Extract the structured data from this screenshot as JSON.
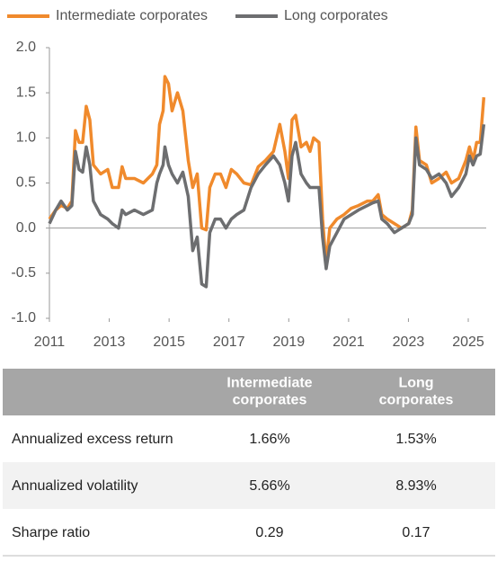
{
  "chart_data": {
    "type": "line",
    "x": [
      2011.0,
      2011.21,
      2011.39,
      2011.6,
      2011.75,
      2011.87,
      2011.99,
      2012.11,
      2012.23,
      2012.35,
      2012.47,
      2012.71,
      2012.95,
      2013.1,
      2013.31,
      2013.43,
      2013.55,
      2013.84,
      2014.14,
      2014.44,
      2014.59,
      2014.68,
      2014.8,
      2014.86,
      2014.98,
      2015.1,
      2015.28,
      2015.46,
      2015.64,
      2015.79,
      2015.94,
      2016.09,
      2016.24,
      2016.36,
      2016.54,
      2016.72,
      2016.9,
      2017.08,
      2017.26,
      2017.5,
      2017.74,
      2017.98,
      2018.22,
      2018.49,
      2018.7,
      2018.87,
      2018.99,
      2019.11,
      2019.23,
      2019.41,
      2019.59,
      2019.71,
      2019.83,
      2020.01,
      2020.13,
      2020.25,
      2020.37,
      2020.61,
      2020.85,
      2021.09,
      2021.33,
      2021.63,
      2021.81,
      2021.99,
      2022.11,
      2022.29,
      2022.53,
      2022.77,
      2023.01,
      2023.13,
      2023.25,
      2023.37,
      2023.6,
      2023.78,
      2024.02,
      2024.26,
      2024.44,
      2024.68,
      2024.92,
      2025.04,
      2025.16,
      2025.28,
      2025.4,
      2025.52
    ],
    "series": [
      {
        "name": "Intermediate corporates",
        "color": "#f08a2c",
        "values": [
          0.1,
          0.2,
          0.25,
          0.22,
          0.3,
          1.08,
          0.95,
          0.95,
          1.35,
          1.2,
          0.7,
          0.6,
          0.65,
          0.45,
          0.45,
          0.68,
          0.55,
          0.55,
          0.5,
          0.6,
          0.7,
          1.15,
          1.3,
          1.68,
          1.6,
          1.3,
          1.5,
          1.3,
          0.75,
          0.45,
          0.6,
          0.0,
          -0.02,
          0.45,
          0.6,
          0.6,
          0.45,
          0.65,
          0.6,
          0.5,
          0.48,
          0.68,
          0.75,
          0.85,
          1.15,
          0.85,
          0.55,
          1.2,
          1.25,
          0.9,
          0.95,
          0.85,
          1.0,
          0.95,
          0.1,
          -0.4,
          0.0,
          0.1,
          0.15,
          0.22,
          0.25,
          0.3,
          0.3,
          0.37,
          0.15,
          0.1,
          0.05,
          0.0,
          0.05,
          0.2,
          1.12,
          0.75,
          0.7,
          0.5,
          0.55,
          0.62,
          0.5,
          0.55,
          0.75,
          0.9,
          0.75,
          0.95,
          0.95,
          1.45
        ]
      },
      {
        "name": "Long corporates",
        "color": "#6d6e70",
        "values": [
          0.05,
          0.2,
          0.3,
          0.2,
          0.25,
          0.85,
          0.65,
          0.62,
          0.9,
          0.7,
          0.3,
          0.15,
          0.1,
          0.05,
          0.0,
          0.2,
          0.15,
          0.2,
          0.15,
          0.2,
          0.5,
          0.6,
          0.7,
          0.9,
          0.7,
          0.6,
          0.5,
          0.62,
          0.35,
          -0.25,
          -0.1,
          -0.62,
          -0.65,
          -0.05,
          0.1,
          0.1,
          0.0,
          0.1,
          0.15,
          0.2,
          0.45,
          0.6,
          0.7,
          0.8,
          0.7,
          0.5,
          0.3,
          0.8,
          0.95,
          0.6,
          0.5,
          0.45,
          0.45,
          0.45,
          -0.1,
          -0.45,
          -0.2,
          -0.05,
          0.1,
          0.15,
          0.2,
          0.25,
          0.28,
          0.3,
          0.1,
          0.05,
          -0.05,
          0.0,
          0.05,
          0.15,
          1.0,
          0.7,
          0.65,
          0.55,
          0.6,
          0.5,
          0.35,
          0.45,
          0.6,
          0.8,
          0.7,
          0.8,
          0.82,
          1.15
        ]
      }
    ],
    "xlim": [
      2011,
      2025.6
    ],
    "xticks": [
      2011,
      2013,
      2015,
      2017,
      2019,
      2021,
      2023,
      2025
    ],
    "ylim": [
      -1.0,
      2.0
    ],
    "yticks": [
      {
        "value": 2.0,
        "label": "2.0"
      },
      {
        "value": 1.5,
        "label": "1.5"
      },
      {
        "value": 1.0,
        "label": "1.0"
      },
      {
        "value": 0.5,
        "label": "0.5"
      },
      {
        "value": 0.0,
        "label": "0.0"
      },
      {
        "value": -0.5,
        "label": "-0.5"
      },
      {
        "value": -1.0,
        "label": "-1.0"
      }
    ],
    "legend": "top-left"
  },
  "table": {
    "columns": [
      "Intermediate corporates",
      "Long corporates"
    ],
    "rows": [
      [
        "Annualized excess return",
        "1.66%",
        "1.53%"
      ],
      [
        "Annualized volatility",
        "5.66%",
        "8.93%"
      ],
      [
        "Sharpe ratio",
        "0.29",
        "0.17"
      ]
    ]
  }
}
